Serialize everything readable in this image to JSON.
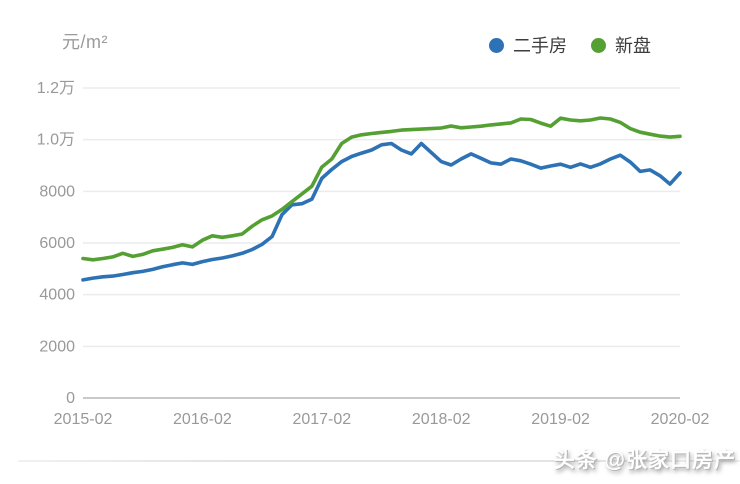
{
  "unit_label": "元/m²",
  "legend": {
    "items": [
      {
        "label": "二手房",
        "color": "#2d72b5"
      },
      {
        "label": "新盘",
        "color": "#54a033"
      }
    ]
  },
  "watermark": "头条 @张家口房产",
  "colors": {
    "gridline": "#ececec",
    "axis_line": "#c9c9c9",
    "tick_text": "#999999"
  },
  "chart_data": {
    "type": "line",
    "title": "",
    "ylabel": "元/m²",
    "xlabel": "",
    "x_start": "2015-02",
    "x_end": "2020-02",
    "x_interval_months": 1,
    "point_count": 61,
    "ylim": [
      0,
      12000
    ],
    "grid": "horizontal",
    "legend_position": "top-right",
    "x_tick_labels": [
      "2015-02",
      "2016-02",
      "2017-02",
      "2018-02",
      "2019-02",
      "2020-02"
    ],
    "x_tick_indices": [
      0,
      12,
      24,
      36,
      48,
      60
    ],
    "y_ticks": [
      {
        "label": "0",
        "value": 0
      },
      {
        "label": "2000",
        "value": 2000
      },
      {
        "label": "4000",
        "value": 4000
      },
      {
        "label": "6000",
        "value": 6000
      },
      {
        "label": "8000",
        "value": 8000
      },
      {
        "label": "1.0万",
        "value": 10000
      },
      {
        "label": "1.2万",
        "value": 12000
      }
    ],
    "series": [
      {
        "name": "二手房",
        "key": "secondhand",
        "color": "#2d72b5",
        "values": [
          4570,
          4640,
          4690,
          4720,
          4780,
          4850,
          4900,
          4980,
          5080,
          5160,
          5230,
          5170,
          5280,
          5360,
          5420,
          5500,
          5600,
          5750,
          5950,
          6250,
          7100,
          7480,
          7520,
          7700,
          8500,
          8850,
          9150,
          9350,
          9480,
          9600,
          9800,
          9850,
          9600,
          9450,
          9850,
          9500,
          9150,
          9020,
          9250,
          9450,
          9280,
          9100,
          9050,
          9250,
          9180,
          9050,
          8900,
          8980,
          9050,
          8930,
          9060,
          8930,
          9060,
          9250,
          9400,
          9130,
          8770,
          8830,
          8600,
          8280,
          8710
        ]
      },
      {
        "name": "新盘",
        "key": "new",
        "color": "#54a033",
        "values": [
          5400,
          5350,
          5400,
          5460,
          5600,
          5480,
          5560,
          5700,
          5760,
          5830,
          5930,
          5850,
          6110,
          6280,
          6220,
          6280,
          6350,
          6650,
          6900,
          7050,
          7300,
          7600,
          7900,
          8200,
          8940,
          9250,
          9850,
          10100,
          10190,
          10240,
          10280,
          10320,
          10370,
          10390,
          10410,
          10430,
          10450,
          10530,
          10460,
          10490,
          10520,
          10570,
          10610,
          10650,
          10800,
          10780,
          10640,
          10520,
          10830,
          10760,
          10730,
          10760,
          10840,
          10800,
          10670,
          10430,
          10290,
          10210,
          10140,
          10100,
          10130
        ]
      }
    ]
  }
}
